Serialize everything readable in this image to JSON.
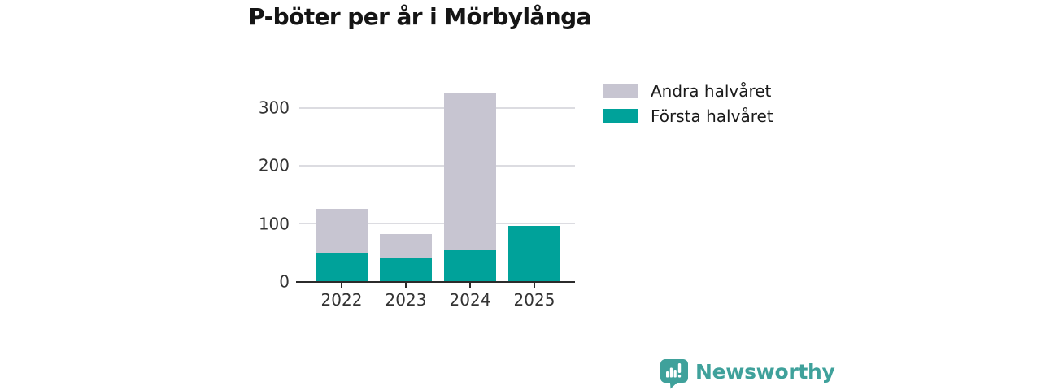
{
  "chart_data": {
    "type": "bar",
    "stacked": true,
    "title": "P-böter per år i Mörbylånga",
    "categories": [
      "2022",
      "2023",
      "2024",
      "2025"
    ],
    "series": [
      {
        "name": "Första halvåret",
        "color": "#00a29a",
        "values": [
          51,
          42,
          55,
          97
        ]
      },
      {
        "name": "Andra halvåret",
        "color": "#c7c5d1",
        "values": [
          75,
          41,
          270,
          0
        ]
      }
    ],
    "totals": [
      126,
      83,
      325,
      97
    ],
    "xlabel": "",
    "ylabel": "",
    "yticks": [
      0,
      100,
      200,
      300
    ],
    "ylim": [
      0,
      346
    ],
    "grid": true,
    "legend_position": "top-right"
  },
  "legend": {
    "items": [
      {
        "label": "Andra halvåret",
        "color": "#c7c5d1"
      },
      {
        "label": "Första halvåret",
        "color": "#00a29a"
      }
    ]
  },
  "branding": {
    "logo_text": "Newsworthy",
    "logo_color": "#3fa19b"
  },
  "style_colors": {
    "bar_teal": "#00a29a",
    "bar_gray": "#c7c5d1",
    "gridline": "#dcdce1",
    "axis": "#2b2b2b",
    "title_text": "#151515",
    "tick_text": "#333333"
  }
}
